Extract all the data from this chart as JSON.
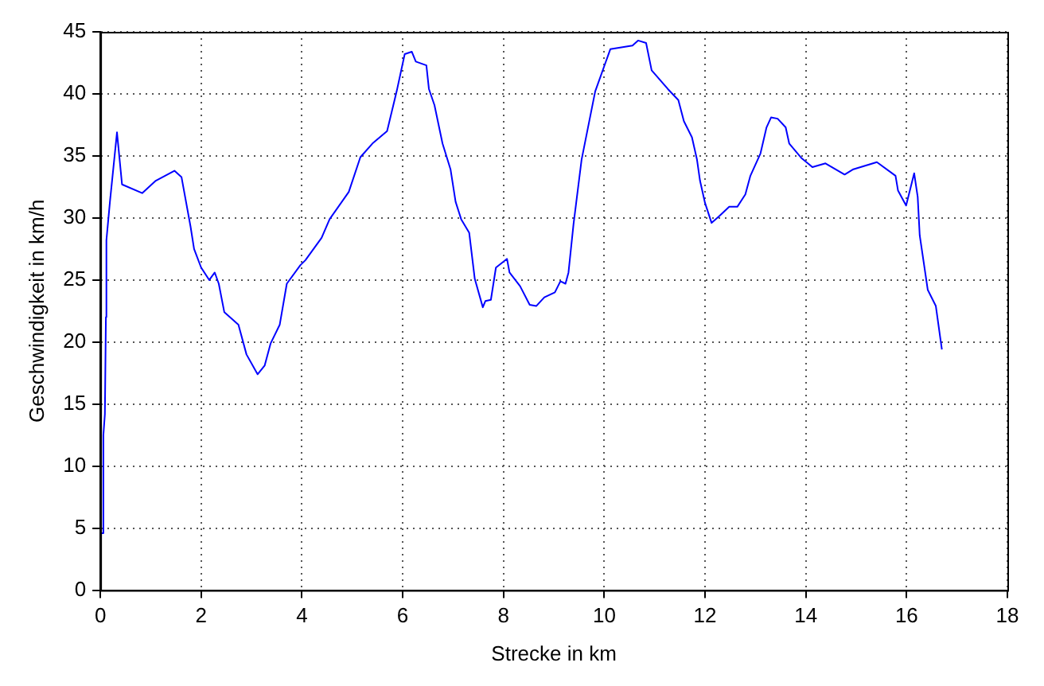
{
  "chart_data": {
    "type": "line",
    "xlabel": "Strecke in km",
    "ylabel": "Geschwindigkeit in km/h",
    "series": [
      {
        "color": "#0000ff",
        "x": [
          0.03,
          0.06,
          0.09,
          0.11,
          0.12,
          0.19,
          0.33,
          0.43,
          0.83,
          1.1,
          1.47,
          1.61,
          1.79,
          1.86,
          2.0,
          2.16,
          2.27,
          2.35,
          2.46,
          2.74,
          2.9,
          3.12,
          3.26,
          3.38,
          3.56,
          3.7,
          3.97,
          4.07,
          4.39,
          4.55,
          4.93,
          5.16,
          5.4,
          5.69,
          5.88,
          6.04,
          6.18,
          6.26,
          6.47,
          6.52,
          6.63,
          6.79,
          6.95,
          7.05,
          7.16,
          7.32,
          7.43,
          7.59,
          7.64,
          7.75,
          7.85,
          8.07,
          8.12,
          8.33,
          8.52,
          8.65,
          8.81,
          9.02,
          9.13,
          9.23,
          9.29,
          9.39,
          9.55,
          9.82,
          10.12,
          10.56,
          10.67,
          10.83,
          10.94,
          11.26,
          11.47,
          11.58,
          11.74,
          11.84,
          11.9,
          12.0,
          12.13,
          12.27,
          12.48,
          12.64,
          12.8,
          12.9,
          13.1,
          13.22,
          13.31,
          13.44,
          13.6,
          13.67,
          13.92,
          14.13,
          14.39,
          14.77,
          14.93,
          15.41,
          15.78,
          15.83,
          15.99,
          16.15,
          16.22,
          16.26,
          16.42,
          16.58,
          16.7
        ],
        "values": [
          4.6,
          12.5,
          14.2,
          22,
          28.2,
          31.3,
          36.9,
          32.7,
          32.0,
          33.0,
          33.8,
          33.3,
          29.3,
          27.5,
          26.0,
          25.0,
          25.6,
          24.7,
          22.4,
          21.4,
          19.0,
          17.4,
          18.1,
          19.9,
          21.4,
          24.7,
          26.2,
          26.6,
          28.4,
          29.9,
          32.1,
          34.9,
          36.0,
          37.0,
          40.2,
          43.2,
          43.4,
          42.6,
          42.3,
          40.4,
          39.1,
          36.0,
          33.9,
          31.3,
          29.9,
          28.8,
          25.1,
          22.8,
          23.3,
          23.4,
          26.0,
          26.7,
          25.6,
          24.5,
          23.0,
          22.9,
          23.6,
          24.0,
          24.9,
          24.7,
          25.6,
          29.5,
          34.7,
          40.2,
          43.6,
          43.9,
          44.3,
          44.1,
          41.9,
          40.4,
          39.5,
          37.8,
          36.5,
          34.7,
          33.0,
          31.2,
          29.6,
          30.1,
          30.9,
          30.9,
          31.9,
          33.4,
          35.2,
          37.3,
          38.1,
          38.0,
          37.3,
          36.0,
          34.8,
          34.1,
          34.4,
          33.5,
          33.9,
          34.5,
          33.4,
          32.2,
          31.0,
          33.6,
          31.7,
          28.6,
          24.2,
          22.9,
          19.4
        ]
      }
    ],
    "xlim": [
      0,
      18
    ],
    "ylim": [
      0,
      45
    ],
    "xticks": [
      0,
      2,
      4,
      6,
      8,
      10,
      12,
      14,
      16,
      18
    ],
    "yticks": [
      0,
      5,
      10,
      15,
      20,
      25,
      30,
      35,
      40,
      45
    ],
    "grid": true,
    "legend": false,
    "marker": "none",
    "line_style": "solid"
  }
}
